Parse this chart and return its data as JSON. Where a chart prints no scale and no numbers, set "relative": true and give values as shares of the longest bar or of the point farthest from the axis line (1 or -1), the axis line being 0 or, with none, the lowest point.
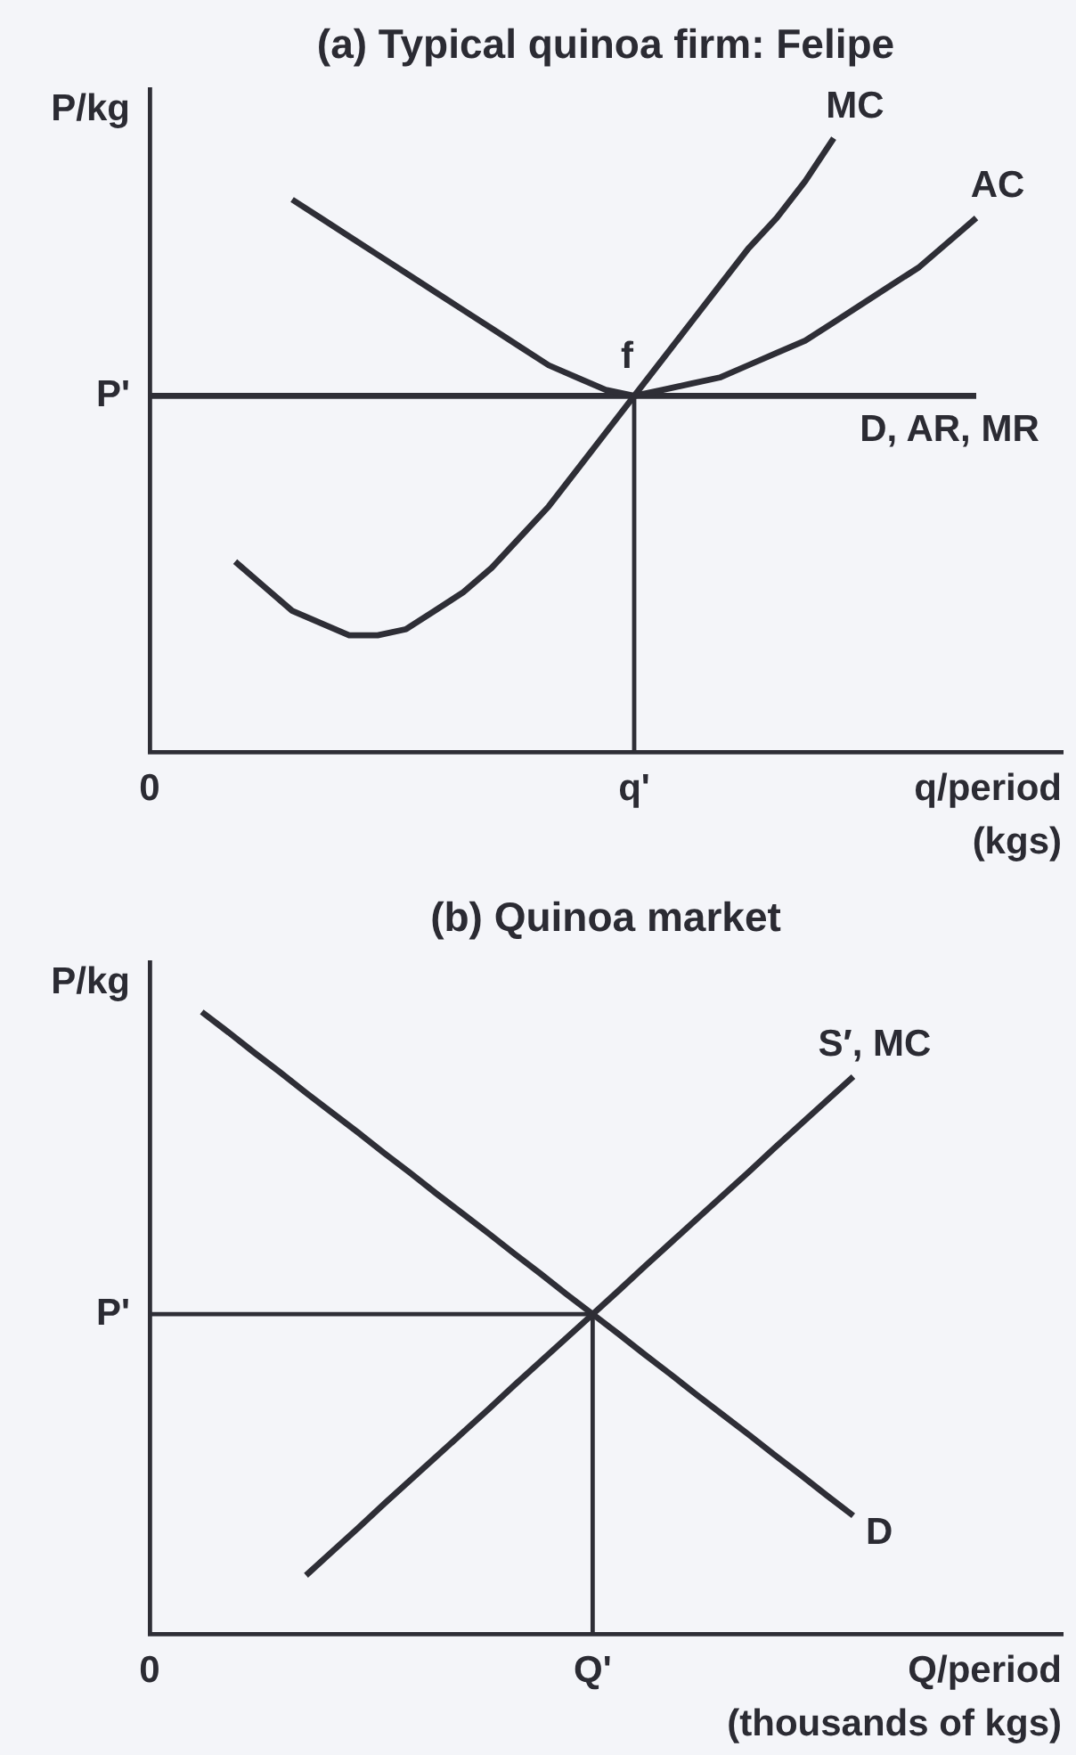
{
  "chart_data": [
    {
      "type": "line",
      "title": "(a) Typical quinoa firm: Felipe",
      "xlabel": "q/period\n(kgs)",
      "ylabel": "P/kg",
      "relative": true,
      "marker": "none",
      "categories": [
        "0",
        null,
        null,
        null,
        null,
        null,
        null,
        null,
        null,
        null,
        null,
        null,
        null,
        null,
        null,
        null,
        null,
        "q'",
        null,
        null,
        null,
        null,
        null,
        null,
        null,
        null,
        null,
        null,
        null,
        null,
        null,
        null,
        null
      ],
      "series": [
        {
          "name": "MC",
          "color": "#2e2e36",
          "values": [
            null,
            null,
            null,
            0.31,
            0.27,
            0.23,
            0.21,
            0.19,
            0.19,
            0.2,
            0.23,
            0.26,
            0.3,
            0.35,
            0.4,
            0.46,
            0.52,
            0.58,
            0.64,
            0.7,
            0.76,
            0.82,
            0.87,
            0.93,
            1.0,
            null,
            null,
            null,
            null,
            null,
            null,
            null,
            null
          ]
        },
        {
          "name": "AC",
          "color": "#2e2e36",
          "values": [
            null,
            null,
            null,
            null,
            null,
            0.9,
            0.87,
            0.84,
            0.81,
            0.78,
            0.75,
            0.72,
            0.69,
            0.66,
            0.63,
            0.61,
            0.59,
            0.58,
            0.59,
            0.6,
            0.61,
            0.63,
            0.65,
            0.67,
            0.7,
            0.73,
            0.76,
            0.79,
            0.83,
            0.87,
            null,
            null,
            null
          ]
        },
        {
          "name": "D, AR, MR",
          "color": "#2e2e36",
          "values": [
            0.58,
            0.58,
            0.58,
            0.58,
            0.58,
            0.58,
            0.58,
            0.58,
            0.58,
            0.58,
            0.58,
            0.58,
            0.58,
            0.58,
            0.58,
            0.58,
            0.58,
            0.58,
            0.58,
            0.58,
            0.58,
            0.58,
            0.58,
            0.58,
            0.58,
            0.58,
            0.58,
            0.58,
            0.58,
            0.58,
            null,
            null,
            null
          ]
        },
        {
          "color": "#2e2e36",
          "x": [
            "q'",
            "q'"
          ],
          "values": [
            0,
            0.58
          ]
        }
      ],
      "annotations": [
        {
          "text": "f",
          "x": "q'",
          "y": 0.58
        },
        {
          "text": "P'",
          "x": "0",
          "y": 0.58
        }
      ]
    },
    {
      "type": "line",
      "title": "(b) Quinoa market",
      "xlabel": "Q/period\n(thousands of kgs)",
      "ylabel": "P/kg",
      "relative": true,
      "marker": "none",
      "categories": [
        "0",
        null,
        null,
        null,
        null,
        null,
        null,
        null,
        null,
        null,
        null,
        null,
        null,
        null,
        null,
        null,
        null,
        "Q'",
        null,
        null,
        null,
        null,
        null,
        null,
        null,
        null,
        null,
        null,
        null,
        null,
        null,
        null,
        null,
        null,
        null,
        null
      ],
      "series": [
        {
          "name": "S′, MC",
          "color": "#2e2e36",
          "values": [
            null,
            null,
            null,
            null,
            null,
            null,
            0.094,
            0.132,
            0.17,
            0.209,
            0.247,
            0.285,
            0.323,
            0.361,
            0.4,
            0.438,
            0.476,
            0.514,
            0.552,
            0.591,
            0.629,
            0.667,
            0.705,
            0.743,
            0.782,
            0.82,
            0.858,
            0.896,
            null,
            null,
            null,
            null,
            null,
            null,
            null,
            null
          ]
        },
        {
          "name": "D",
          "color": "#2e2e36",
          "values": [
            null,
            null,
            1.0,
            0.968,
            0.935,
            0.903,
            0.87,
            0.838,
            0.806,
            0.773,
            0.741,
            0.708,
            0.676,
            0.644,
            0.611,
            0.579,
            0.546,
            0.514,
            0.482,
            0.449,
            0.417,
            0.384,
            0.352,
            0.32,
            0.287,
            0.255,
            0.222,
            0.19,
            null,
            null,
            null,
            null,
            null,
            null,
            null,
            null
          ]
        },
        {
          "color": "#2e2e36",
          "values": [
            0.514,
            0.514,
            0.514,
            0.514,
            0.514,
            0.514,
            0.514,
            0.514,
            0.514,
            0.514,
            0.514,
            0.514,
            0.514,
            0.514,
            0.514,
            0.514,
            0.514,
            0.514,
            null,
            null,
            null,
            null,
            null,
            null,
            null,
            null,
            null,
            null,
            null,
            null,
            null,
            null,
            null,
            null,
            null,
            null
          ]
        },
        {
          "color": "#2e2e36",
          "x": [
            "Q'",
            "Q'"
          ],
          "values": [
            0,
            0.514
          ]
        }
      ],
      "annotations": [
        {
          "text": "P'",
          "x": "0",
          "y": 0.514
        }
      ]
    }
  ]
}
